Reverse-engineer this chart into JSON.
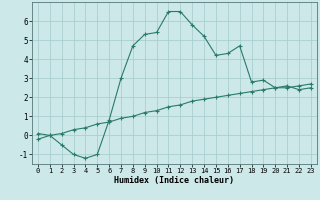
{
  "xlabel": "Humidex (Indice chaleur)",
  "x_curve": [
    0,
    1,
    2,
    3,
    4,
    5,
    6,
    7,
    8,
    9,
    10,
    11,
    12,
    13,
    14,
    15,
    16,
    17,
    18,
    19,
    20,
    21,
    22,
    23
  ],
  "y_curve": [
    0.1,
    0.0,
    -0.5,
    -1.0,
    -1.2,
    -1.0,
    0.8,
    3.0,
    4.7,
    5.3,
    5.4,
    6.5,
    6.5,
    5.8,
    5.2,
    4.2,
    4.3,
    4.7,
    2.8,
    2.9,
    2.5,
    2.6,
    2.4,
    2.5
  ],
  "x_line": [
    0,
    1,
    2,
    3,
    4,
    5,
    6,
    7,
    8,
    9,
    10,
    11,
    12,
    13,
    14,
    15,
    16,
    17,
    18,
    19,
    20,
    21,
    22,
    23
  ],
  "y_line": [
    -0.2,
    0.0,
    0.1,
    0.3,
    0.4,
    0.6,
    0.7,
    0.9,
    1.0,
    1.2,
    1.3,
    1.5,
    1.6,
    1.8,
    1.9,
    2.0,
    2.1,
    2.2,
    2.3,
    2.4,
    2.5,
    2.5,
    2.6,
    2.7
  ],
  "line_color": "#2a7a6a",
  "bg_color": "#cce8e8",
  "grid_color": "#aacece",
  "ylim": [
    -1.5,
    7.0
  ],
  "xlim": [
    -0.5,
    23.5
  ],
  "yticks": [
    -1,
    0,
    1,
    2,
    3,
    4,
    5,
    6
  ],
  "xticks": [
    0,
    1,
    2,
    3,
    4,
    5,
    6,
    7,
    8,
    9,
    10,
    11,
    12,
    13,
    14,
    15,
    16,
    17,
    18,
    19,
    20,
    21,
    22,
    23
  ]
}
